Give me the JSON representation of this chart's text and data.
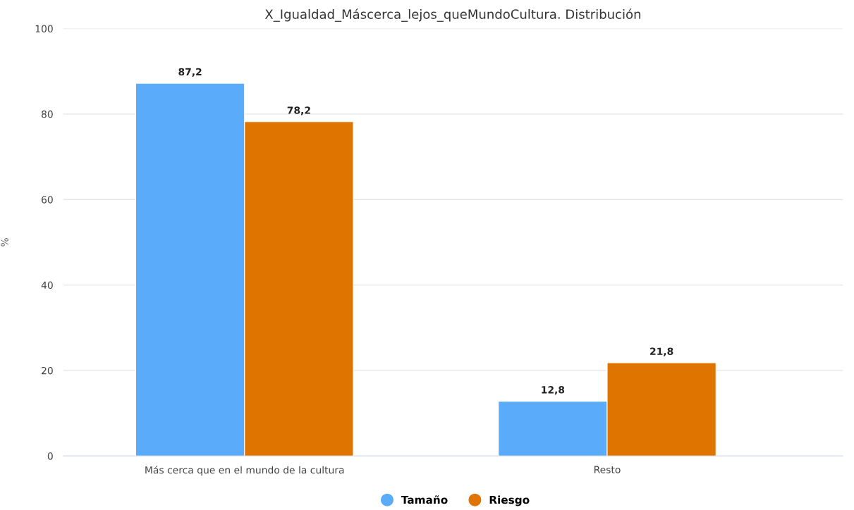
{
  "chart_data": {
    "type": "bar",
    "title": "X_Igualdad_Máscerca_lejos_queMundoCultura. Distribución",
    "ylabel": "%",
    "categories": [
      "Más cerca que en el mundo de la cultura",
      "Resto"
    ],
    "series": [
      {
        "name": "Tamaño",
        "color": "#5aabf9",
        "values": [
          87.2,
          12.8
        ],
        "value_labels": [
          "87,2",
          "12,8"
        ]
      },
      {
        "name": "Riesgo",
        "color": "#e07400",
        "values": [
          78.2,
          21.8
        ],
        "value_labels": [
          "78,2",
          "21,8"
        ]
      }
    ],
    "ylim": [
      0,
      100
    ],
    "yticks": [
      0,
      20,
      40,
      60,
      80,
      100
    ],
    "grid": "y",
    "legend": "bottom"
  }
}
